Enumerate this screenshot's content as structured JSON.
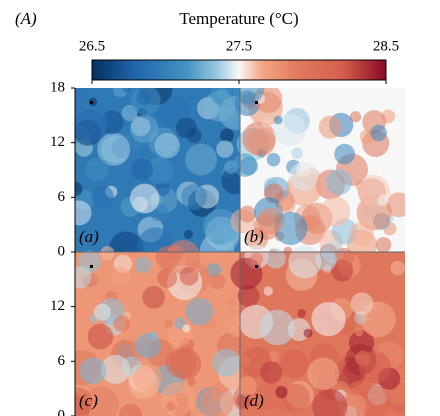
{
  "chart_data": {
    "type": "heatmap",
    "panel_label": "(A)",
    "colorbar": {
      "label": "Temperature (°C)",
      "lim": [
        26.5,
        28.5
      ],
      "ticks": [
        26.5,
        27.5,
        28.5
      ]
    },
    "rows": [
      {
        "ylim": [
          0,
          18
        ],
        "yticks": [
          0,
          6,
          12,
          18
        ]
      },
      {
        "ylim": [
          0,
          18
        ],
        "yticks": [
          0,
          6,
          12
        ]
      }
    ],
    "panels": [
      "(a)",
      "(b)",
      "(c)",
      "(d)"
    ]
  }
}
